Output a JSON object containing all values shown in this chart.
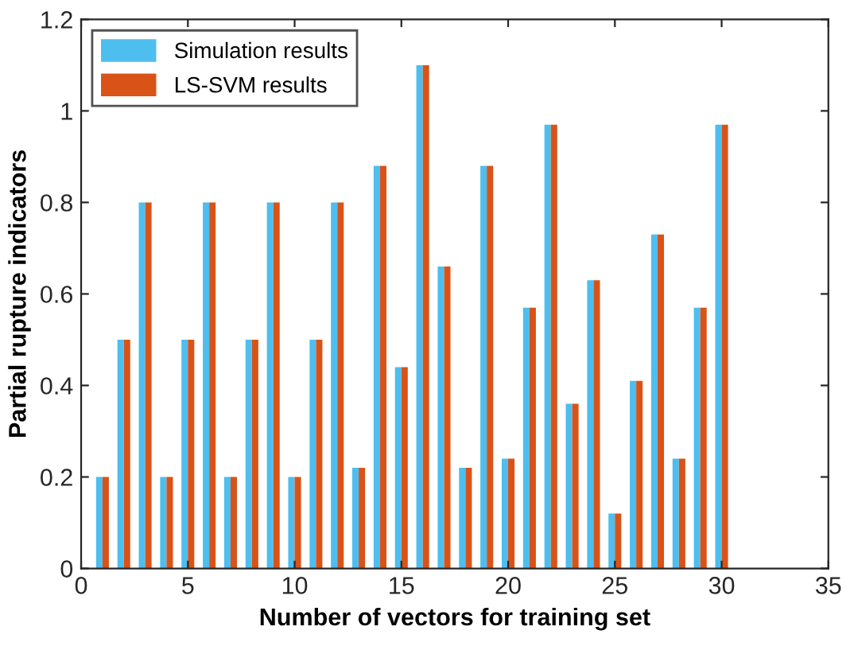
{
  "chart_data": {
    "type": "bar",
    "xlabel": "Number of vectors for training set",
    "ylabel": "Partial rupture indicators",
    "x": [
      1,
      2,
      3,
      4,
      5,
      6,
      7,
      8,
      9,
      10,
      11,
      12,
      13,
      14,
      15,
      16,
      17,
      18,
      19,
      20,
      21,
      22,
      23,
      24,
      25,
      26,
      27,
      28,
      29,
      30
    ],
    "series": [
      {
        "name": "Simulation results",
        "color": "#4dbeee",
        "values": [
          0.2,
          0.5,
          0.8,
          0.2,
          0.5,
          0.8,
          0.2,
          0.5,
          0.8,
          0.2,
          0.5,
          0.8,
          0.22,
          0.88,
          0.44,
          1.1,
          0.66,
          0.22,
          0.88,
          0.24,
          0.57,
          0.97,
          0.36,
          0.63,
          0.12,
          0.41,
          0.73,
          0.24,
          0.57,
          0.97
        ]
      },
      {
        "name": "LS-SVM results",
        "color": "#d95319",
        "values": [
          0.2,
          0.5,
          0.8,
          0.2,
          0.5,
          0.8,
          0.2,
          0.5,
          0.8,
          0.2,
          0.5,
          0.8,
          0.22,
          0.88,
          0.44,
          1.1,
          0.66,
          0.22,
          0.88,
          0.24,
          0.57,
          0.97,
          0.36,
          0.63,
          0.12,
          0.41,
          0.73,
          0.24,
          0.57,
          0.97
        ]
      }
    ],
    "xlim": [
      0,
      35
    ],
    "xticks": [
      0,
      5,
      10,
      15,
      20,
      25,
      30,
      35
    ],
    "ylim": [
      0,
      1.2
    ],
    "yticks": [
      0,
      0.2,
      0.4,
      0.6,
      0.8,
      1,
      1.2
    ],
    "grid": false,
    "legend": "top left"
  }
}
